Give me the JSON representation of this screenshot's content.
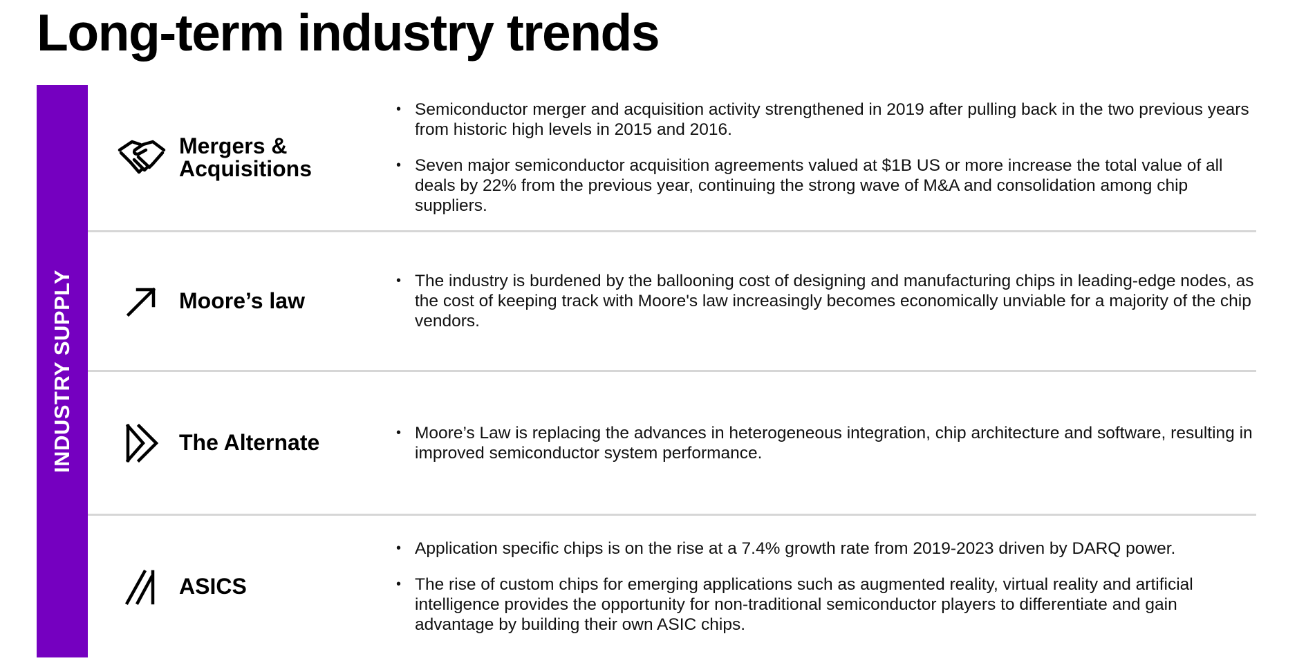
{
  "page": {
    "title": "Long-term industry trends"
  },
  "side_band": {
    "label": "INDUSTRY SUPPLY",
    "color": "#7500c0"
  },
  "bullet_glyph": "•",
  "trends": [
    {
      "icon": "handshake-icon",
      "title": "Mergers & Acquisitions",
      "points": [
        "Semiconductor merger and acquisition activity strengthened in 2019 after pulling back in the two previous years from historic high levels in 2015 and 2016.",
        "Seven major semiconductor acquisition agreements valued at $1B US or more increase the total value of all deals by 22% from the previous year, continuing the strong wave of M&A and consolidation among chip suppliers."
      ]
    },
    {
      "icon": "arrow-up-right-icon",
      "title": "Moore’s law",
      "points": [
        "The industry is burdened by the ballooning cost of designing and manufacturing chips in leading-edge nodes, as the cost of keeping track with Moore's law increasingly becomes economically unviable for a majority of the chip vendors."
      ]
    },
    {
      "icon": "fast-forward-icon",
      "title": "The Alternate",
      "points": [
        "Moore’s Law is replacing the advances in heterogeneous integration, chip architecture and software, resulting in improved semiconductor system performance."
      ]
    },
    {
      "icon": "parallel-slashes-icon",
      "title": "ASICS",
      "points": [
        "Application specific chips is on the rise at a 7.4% growth rate from 2019-2023 driven by DARQ power.",
        "The rise of custom chips for emerging applications such as augmented reality, virtual reality and artificial intelligence provides the opportunity for non-traditional semiconductor players to differentiate and gain advantage by building their own ASIC chips."
      ]
    }
  ]
}
